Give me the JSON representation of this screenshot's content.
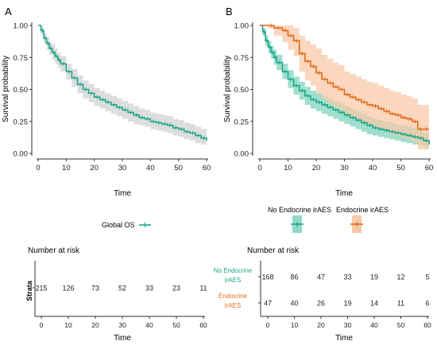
{
  "colors": {
    "global": "#1aa68a",
    "none": "#1aa68a",
    "endo": "#e06a17",
    "ci_global": "#d9d9d9",
    "ci_none": "#8fd9c6",
    "ci_endo": "#f8c9a8",
    "axis": "#333333"
  },
  "chart_data": [
    {
      "panel": "A",
      "type": "line",
      "xlabel": "Time",
      "ylabel": "Survival probability",
      "xlim": [
        0,
        60
      ],
      "ylim": [
        0,
        1
      ],
      "xticks": [
        "0",
        "10",
        "20",
        "30",
        "40",
        "50",
        "60"
      ],
      "yticks": [
        "0.00",
        "0.25",
        "0.50",
        "0.75",
        "1.00"
      ],
      "legend": [
        "Global OS"
      ],
      "series": [
        {
          "name": "Global OS",
          "x": [
            0,
            1,
            2,
            3,
            4,
            5,
            6,
            7,
            8,
            10,
            12,
            14,
            16,
            18,
            20,
            22,
            24,
            26,
            28,
            30,
            32,
            34,
            36,
            38,
            40,
            42,
            44,
            46,
            48,
            50,
            52,
            54,
            56,
            58,
            60
          ],
          "y": [
            1.0,
            0.96,
            0.9,
            0.86,
            0.82,
            0.79,
            0.76,
            0.73,
            0.7,
            0.64,
            0.59,
            0.54,
            0.5,
            0.47,
            0.44,
            0.42,
            0.4,
            0.38,
            0.36,
            0.34,
            0.32,
            0.3,
            0.28,
            0.27,
            0.25,
            0.24,
            0.23,
            0.22,
            0.2,
            0.19,
            0.17,
            0.16,
            0.14,
            0.12,
            0.1
          ],
          "ci_lower": [
            1.0,
            0.93,
            0.86,
            0.81,
            0.77,
            0.73,
            0.7,
            0.67,
            0.64,
            0.58,
            0.52,
            0.47,
            0.43,
            0.4,
            0.37,
            0.35,
            0.33,
            0.31,
            0.29,
            0.27,
            0.25,
            0.23,
            0.22,
            0.21,
            0.19,
            0.18,
            0.17,
            0.16,
            0.14,
            0.13,
            0.11,
            0.1,
            0.08,
            0.07,
            0.05
          ],
          "ci_upper": [
            1.0,
            0.99,
            0.94,
            0.91,
            0.87,
            0.85,
            0.82,
            0.79,
            0.76,
            0.7,
            0.66,
            0.61,
            0.57,
            0.54,
            0.51,
            0.49,
            0.47,
            0.45,
            0.43,
            0.41,
            0.39,
            0.37,
            0.35,
            0.34,
            0.32,
            0.31,
            0.3,
            0.29,
            0.27,
            0.26,
            0.24,
            0.23,
            0.21,
            0.19,
            0.17
          ]
        }
      ],
      "risk_table": {
        "title": "Number at risk",
        "ylabel": "Strata",
        "xlabel": "Time",
        "times": [
          "0",
          "10",
          "20",
          "30",
          "40",
          "50",
          "60"
        ],
        "rows": [
          {
            "label": "",
            "values": [
              "215",
              "126",
              "73",
              "52",
              "33",
              "23",
              "11"
            ]
          }
        ]
      }
    },
    {
      "panel": "B",
      "type": "line",
      "xlabel": "Time",
      "ylabel": "Survival probability",
      "xlim": [
        0,
        60
      ],
      "ylim": [
        0,
        1
      ],
      "xticks": [
        "0",
        "10",
        "20",
        "30",
        "40",
        "50",
        "60"
      ],
      "yticks": [
        "0.00",
        "0.25",
        "0.50",
        "0.75",
        "1.00"
      ],
      "legend": [
        "No Endocrine irAES",
        "Endocrine irAES"
      ],
      "series": [
        {
          "name": "No Endocrine irAES",
          "x": [
            0,
            1,
            2,
            3,
            4,
            5,
            6,
            8,
            10,
            12,
            14,
            16,
            18,
            20,
            22,
            24,
            26,
            28,
            30,
            32,
            34,
            36,
            38,
            40,
            42,
            44,
            46,
            48,
            50,
            52,
            54,
            56,
            58,
            60
          ],
          "y": [
            1.0,
            0.95,
            0.88,
            0.83,
            0.79,
            0.75,
            0.71,
            0.64,
            0.58,
            0.53,
            0.49,
            0.45,
            0.42,
            0.4,
            0.38,
            0.36,
            0.34,
            0.32,
            0.3,
            0.28,
            0.26,
            0.24,
            0.22,
            0.2,
            0.19,
            0.18,
            0.17,
            0.16,
            0.15,
            0.14,
            0.13,
            0.12,
            0.1,
            0.07
          ],
          "ci_lower": [
            1.0,
            0.92,
            0.84,
            0.78,
            0.74,
            0.69,
            0.65,
            0.58,
            0.51,
            0.46,
            0.42,
            0.38,
            0.35,
            0.33,
            0.31,
            0.29,
            0.27,
            0.25,
            0.23,
            0.21,
            0.19,
            0.17,
            0.15,
            0.14,
            0.13,
            0.12,
            0.11,
            0.1,
            0.09,
            0.08,
            0.07,
            0.06,
            0.05,
            0.04
          ],
          "ci_upper": [
            1.0,
            0.98,
            0.92,
            0.88,
            0.84,
            0.81,
            0.77,
            0.7,
            0.65,
            0.6,
            0.56,
            0.52,
            0.49,
            0.47,
            0.45,
            0.43,
            0.41,
            0.39,
            0.37,
            0.35,
            0.33,
            0.31,
            0.29,
            0.27,
            0.26,
            0.25,
            0.24,
            0.23,
            0.22,
            0.21,
            0.2,
            0.18,
            0.16,
            0.12
          ]
        },
        {
          "name": "Endocrine irAES",
          "x": [
            0,
            3,
            5,
            8,
            10,
            12,
            14,
            16,
            18,
            20,
            22,
            24,
            26,
            28,
            30,
            32,
            34,
            36,
            38,
            40,
            42,
            44,
            46,
            48,
            50,
            52,
            54,
            56,
            58,
            60
          ],
          "y": [
            1.0,
            1.0,
            0.98,
            0.96,
            0.92,
            0.88,
            0.78,
            0.72,
            0.68,
            0.63,
            0.58,
            0.55,
            0.52,
            0.5,
            0.46,
            0.44,
            0.42,
            0.4,
            0.38,
            0.37,
            0.35,
            0.33,
            0.31,
            0.3,
            0.28,
            0.27,
            0.25,
            0.19,
            0.19,
            0.19
          ],
          "ci_lower": [
            1.0,
            0.98,
            0.92,
            0.87,
            0.81,
            0.76,
            0.64,
            0.57,
            0.53,
            0.47,
            0.42,
            0.39,
            0.36,
            0.34,
            0.3,
            0.28,
            0.26,
            0.24,
            0.22,
            0.21,
            0.19,
            0.17,
            0.15,
            0.14,
            0.12,
            0.11,
            0.09,
            0.03,
            0.03,
            0.03
          ],
          "ci_upper": [
            1.0,
            1.0,
            1.0,
            1.0,
            1.0,
            0.98,
            0.92,
            0.88,
            0.85,
            0.82,
            0.77,
            0.74,
            0.71,
            0.69,
            0.64,
            0.62,
            0.6,
            0.58,
            0.56,
            0.55,
            0.53,
            0.51,
            0.49,
            0.48,
            0.46,
            0.45,
            0.43,
            0.38,
            0.38,
            0.38
          ]
        }
      ],
      "risk_table": {
        "title": "Number at risk",
        "xlabel": "Time",
        "times": [
          "0",
          "10",
          "20",
          "30",
          "40",
          "50",
          "60"
        ],
        "rows": [
          {
            "label": "No Endocrine irAES",
            "label_lines": [
              "No Endocrine",
              "irAES"
            ],
            "values": [
              "168",
              "86",
              "47",
              "33",
              "19",
              "12",
              "5"
            ]
          },
          {
            "label": "Endocrine irAES",
            "label_lines": [
              "Endocrine",
              "irAES"
            ],
            "values": [
              "47",
              "40",
              "26",
              "19",
              "14",
              "11",
              "6"
            ]
          }
        ]
      }
    }
  ],
  "panel_labels": [
    "A",
    "B"
  ]
}
